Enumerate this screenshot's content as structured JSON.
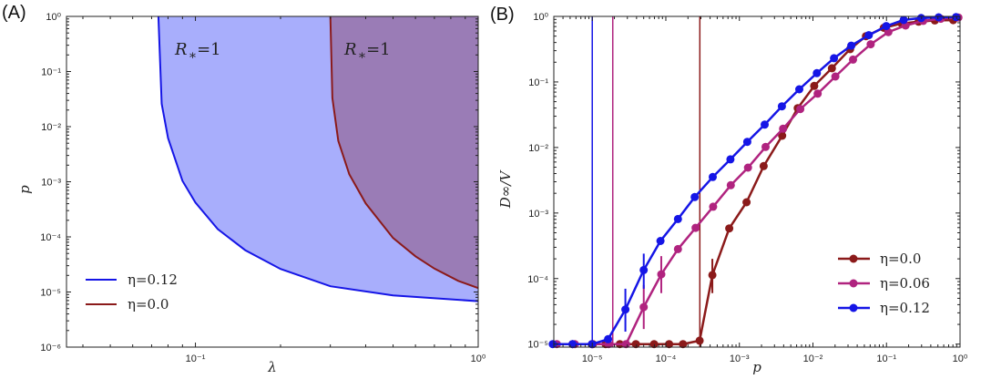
{
  "colors": {
    "blue": "#1515e6",
    "red": "#8b1a1a",
    "magenta": "#b0237f",
    "fill_blue": "#a8aefc",
    "fill_purple": "#9a7cb6"
  },
  "chart_data": [
    {
      "panel": "(A)",
      "type": "line",
      "xlabel": "λ",
      "ylabel": "p",
      "xscale": "log",
      "yscale": "log",
      "xlim": [
        0.035,
        1
      ],
      "ylim": [
        1e-06,
        1
      ],
      "xticks": [
        "10⁻¹",
        "10⁰"
      ],
      "yticks": [
        "10⁻⁶",
        "10⁻⁵",
        "10⁻⁴",
        "10⁻³",
        "10⁻²",
        "10⁻¹",
        "10⁰"
      ],
      "annotations": [
        "R*=1",
        "R*=1"
      ],
      "legend_position": "lower-left",
      "series": [
        {
          "name": "η=0.12",
          "color": "#1515e6",
          "fill": "#a8aefc",
          "x": [
            0.074,
            0.076,
            0.08,
            0.09,
            0.1,
            0.12,
            0.15,
            0.2,
            0.3,
            0.5,
            1.0
          ],
          "y": [
            1.0,
            0.026,
            0.0062,
            0.00104,
            0.00042,
            0.000138,
            5.74e-05,
            2.62e-05,
            1.27e-05,
            8.7e-06,
            6.8e-06
          ]
        },
        {
          "name": "η=0.0",
          "color": "#8b1a1a",
          "fill": "#9a7cb6",
          "x": [
            0.3,
            0.305,
            0.32,
            0.35,
            0.4,
            0.5,
            0.6,
            0.7,
            0.85,
            1.0
          ],
          "y": [
            1.0,
            0.033,
            0.0055,
            0.00136,
            0.000404,
            9.55e-05,
            4.45e-05,
            2.66e-05,
            1.59e-05,
            1.18e-05
          ]
        }
      ]
    },
    {
      "panel": "(B)",
      "type": "line",
      "xlabel": "p",
      "ylabel": "D∞/V",
      "xscale": "log",
      "yscale": "log",
      "xlim": [
        3e-06,
        1
      ],
      "ylim": [
        9e-06,
        1
      ],
      "xticks": [
        "10⁻⁵",
        "10⁻⁴",
        "10⁻³",
        "10⁻²",
        "10⁻¹",
        "10⁰"
      ],
      "yticks": [
        "10⁻⁵",
        "10⁻⁴",
        "10⁻³",
        "10⁻²",
        "10⁻¹",
        "10⁰"
      ],
      "legend_position": "lower-right",
      "vlines": [
        {
          "x": 1e-05,
          "color": "#1515e6"
        },
        {
          "x": 1.9e-05,
          "color": "#b0237f"
        },
        {
          "x": 0.00029,
          "color": "#8b1a1a"
        }
      ],
      "series": [
        {
          "name": "η=0.0",
          "color": "#8b1a1a",
          "x": [
            5.4e-06,
            1.02e-05,
            1.52e-05,
            2.37e-05,
            3.92e-05,
            6.92e-05,
            0.000111,
            0.000171,
            0.000288,
            0.000429,
            0.000727,
            0.00125,
            0.00214,
            0.00382,
            0.00622,
            0.0104,
            0.0181,
            0.032,
            0.0526,
            0.092,
            0.161,
            0.273,
            0.454,
            0.807
          ],
          "y": [
            1e-05,
            1e-05,
            1e-05,
            1e-05,
            1e-05,
            1e-05,
            1e-05,
            1e-05,
            1.13e-05,
            0.000113,
            0.000583,
            0.00146,
            0.00521,
            0.0151,
            0.0398,
            0.0869,
            0.162,
            0.317,
            0.5,
            0.671,
            0.778,
            0.831,
            0.868,
            0.876
          ],
          "err": {
            "0.000429": [
              6e-05,
              0.0002
            ]
          }
        },
        {
          "name": "η=0.06",
          "color": "#b0237f",
          "x": [
            3.3e-06,
            5.8e-06,
            9.9e-06,
            1.67e-05,
            2.88e-05,
            5.01e-05,
            8.67e-05,
            0.000146,
            0.000254,
            0.00044,
            0.000764,
            0.00131,
            0.00227,
            0.00393,
            0.00673,
            0.0116,
            0.0202,
            0.0351,
            0.061,
            0.106,
            0.182,
            0.316,
            0.548,
            0.951
          ],
          "y": [
            1e-05,
            1e-05,
            1e-05,
            1e-05,
            1e-05,
            3.67e-05,
            0.000116,
            0.000282,
            0.000594,
            0.00125,
            0.00266,
            0.00493,
            0.0102,
            0.0193,
            0.0386,
            0.0663,
            0.121,
            0.219,
            0.376,
            0.577,
            0.727,
            0.854,
            0.92,
            0.963
          ],
          "err": {
            "0.0000501": [
              1.7e-05,
              8e-05
            ],
            "0.0000867": [
              6e-05,
              0.00022
            ]
          }
        },
        {
          "name": "η=0.12",
          "color": "#1515e6",
          "x": [
            2.9e-06,
            5.4e-06,
            9.9e-06,
            1.64e-05,
            2.82e-05,
            5.01e-05,
            8.46e-05,
            0.000146,
            0.000247,
            0.000435,
            0.000756,
            0.00128,
            0.00221,
            0.00378,
            0.00652,
            0.0113,
            0.0193,
            0.0332,
            0.0574,
            0.0993,
            0.171,
            0.296,
            0.511,
            0.882
          ],
          "y": [
            1e-05,
            1e-05,
            1e-05,
            1.19e-05,
            3.38e-05,
            0.000135,
            0.000375,
            0.00081,
            0.00175,
            0.00354,
            0.00659,
            0.0122,
            0.0223,
            0.0425,
            0.0773,
            0.136,
            0.23,
            0.358,
            0.518,
            0.712,
            0.884,
            0.944,
            0.97,
            0.976
          ],
          "err": {
            "0.0000282": [
              1.55e-05,
              7e-05
            ],
            "0.0000501": [
              7e-05,
              0.00024
            ]
          }
        }
      ]
    }
  ]
}
